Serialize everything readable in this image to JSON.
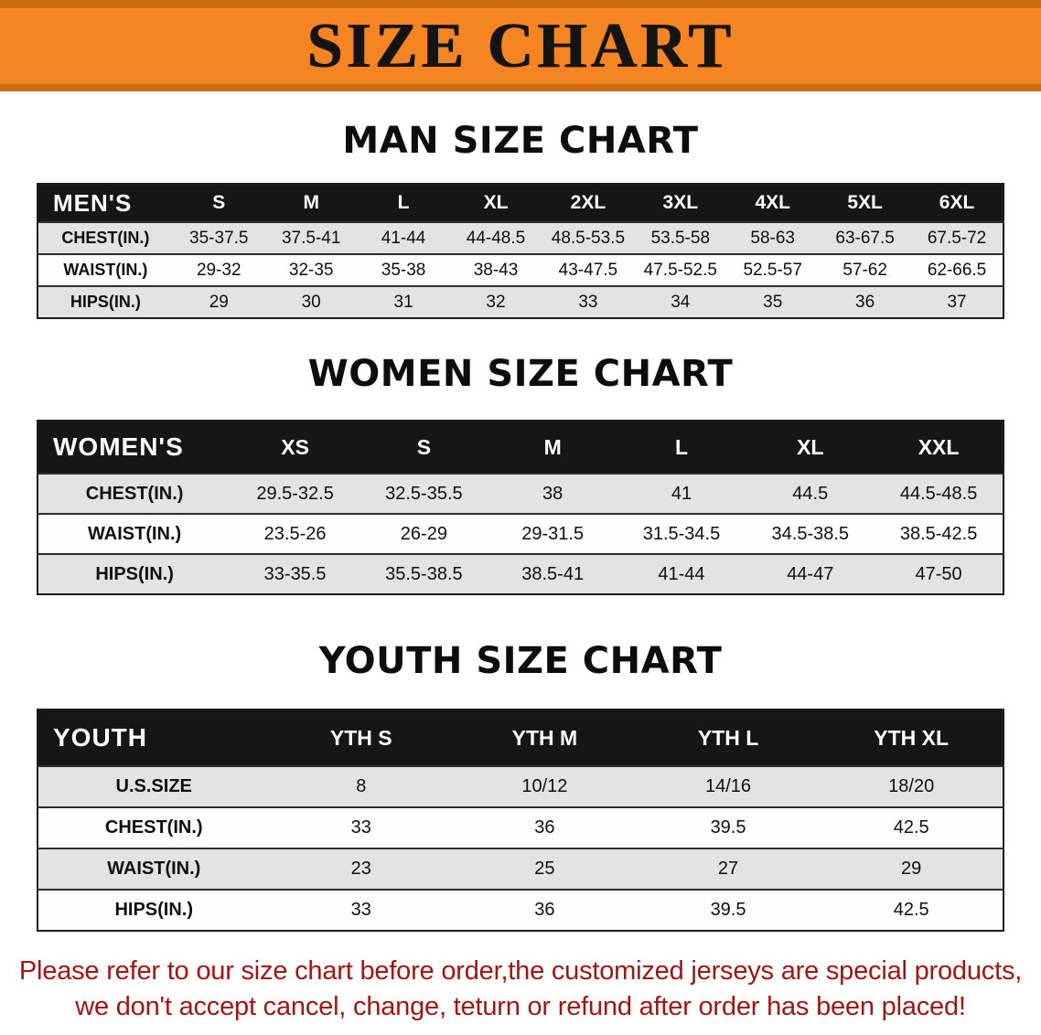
{
  "banner": {
    "title": "SIZE CHART"
  },
  "men": {
    "heading": "MAN SIZE CHART",
    "table": {
      "corner": "MEN'S",
      "columns": [
        "S",
        "M",
        "L",
        "XL",
        "2XL",
        "3XL",
        "4XL",
        "5XL",
        "6XL"
      ],
      "rows": [
        {
          "label": "CHEST(IN.)",
          "values": [
            "35-37.5",
            "37.5-41",
            "41-44",
            "44-48.5",
            "48.5-53.5",
            "53.5-58",
            "58-63",
            "63-67.5",
            "67.5-72"
          ]
        },
        {
          "label": "WAIST(IN.)",
          "values": [
            "29-32",
            "32-35",
            "35-38",
            "38-43",
            "43-47.5",
            "47.5-52.5",
            "52.5-57",
            "57-62",
            "62-66.5"
          ]
        },
        {
          "label": "HIPS(IN.)",
          "values": [
            "29",
            "30",
            "31",
            "32",
            "33",
            "34",
            "35",
            "36",
            "37"
          ]
        }
      ]
    }
  },
  "women": {
    "heading": "WOMEN SIZE CHART",
    "table": {
      "corner": "WOMEN'S",
      "columns": [
        "XS",
        "S",
        "M",
        "L",
        "XL",
        "XXL"
      ],
      "rows": [
        {
          "label": "CHEST(IN.)",
          "values": [
            "29.5-32.5",
            "32.5-35.5",
            "38",
            "41",
            "44.5",
            "44.5-48.5"
          ]
        },
        {
          "label": "WAIST(IN.)",
          "values": [
            "23.5-26",
            "26-29",
            "29-31.5",
            "31.5-34.5",
            "34.5-38.5",
            "38.5-42.5"
          ]
        },
        {
          "label": "HIPS(IN.)",
          "values": [
            "33-35.5",
            "35.5-38.5",
            "38.5-41",
            "41-44",
            "44-47",
            "47-50"
          ]
        }
      ]
    }
  },
  "youth": {
    "heading": "YOUTH SIZE CHART",
    "table": {
      "corner": "YOUTH",
      "columns": [
        "YTH S",
        "YTH M",
        "YTH L",
        "YTH XL"
      ],
      "rows": [
        {
          "label": "U.S.SIZE",
          "values": [
            "8",
            "10/12",
            "14/16",
            "18/20"
          ]
        },
        {
          "label": "CHEST(IN.)",
          "values": [
            "33",
            "36",
            "39.5",
            "42.5"
          ]
        },
        {
          "label": "WAIST(IN.)",
          "values": [
            "23",
            "25",
            "27",
            "29"
          ]
        },
        {
          "label": "HIPS(IN.)",
          "values": [
            "33",
            "36",
            "39.5",
            "42.5"
          ]
        }
      ]
    }
  },
  "disclaimer": {
    "line1": "Please refer to our size chart before order,the customized jerseys are special products,",
    "line2": "we don't accept cancel, change, teturn or refund after order has been placed!"
  },
  "colors": {
    "banner_bg": "#f48522",
    "banner_border": "#c96c10",
    "table_header_bg": "#161616",
    "row_alt_bg": "#e3e3e3",
    "disclaimer_text": "#a31513"
  }
}
